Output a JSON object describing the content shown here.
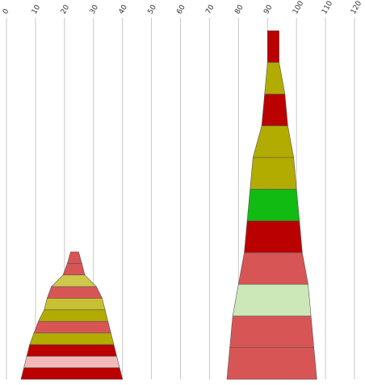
{
  "chart_data": {
    "type": "bar",
    "orientation": "vertical-stacked-funnel",
    "title": "",
    "xlabel": "",
    "ylabel": "",
    "xlim": [
      0,
      120
    ],
    "x_ticks": [
      "0",
      "10",
      "20",
      "30",
      "40",
      "50",
      "60",
      "70",
      "80",
      "90",
      "100",
      "110",
      "120"
    ],
    "grid": "vertical",
    "tick_label_rotation": -60,
    "stacks": [
      {
        "center": 25,
        "segments": [
          {
            "start": 5,
            "end": 40,
            "color": "#bb0000"
          },
          {
            "start": 6,
            "end": 39,
            "color": "#f4b8b8"
          },
          {
            "start": 7,
            "end": 38,
            "color": "#bb0000"
          },
          {
            "start": 8,
            "end": 37,
            "color": "#b3ac00"
          },
          {
            "start": 9.5,
            "end": 36,
            "color": "#d85555"
          },
          {
            "start": 11,
            "end": 35,
            "color": "#b3ac00"
          },
          {
            "start": 13,
            "end": 34,
            "color": "#c8c030"
          },
          {
            "start": 14,
            "end": 33,
            "color": "#d85555"
          },
          {
            "start": 15.5,
            "end": 31,
            "color": "#cec84a"
          },
          {
            "start": 19.5,
            "end": 27,
            "color": "#d85555"
          },
          {
            "start": 21,
            "end": 26,
            "color": "#d85555"
          }
        ]
      },
      {
        "center": 92,
        "segments": [
          {
            "start": 76,
            "end": 107,
            "color": "#d85555"
          },
          {
            "start": 77,
            "end": 106,
            "color": "#d85555"
          },
          {
            "start": 78,
            "end": 105,
            "color": "#cce8b8"
          },
          {
            "start": 80,
            "end": 104,
            "color": "#d85555"
          },
          {
            "start": 82,
            "end": 102,
            "color": "#bb0000"
          },
          {
            "start": 83,
            "end": 101,
            "color": "#11bb11"
          },
          {
            "start": 84,
            "end": 100,
            "color": "#b3ac00"
          },
          {
            "start": 85,
            "end": 99,
            "color": "#b3ac00"
          },
          {
            "start": 88,
            "end": 97,
            "color": "#bb0000"
          },
          {
            "start": 89,
            "end": 96,
            "color": "#b3ac00"
          },
          {
            "start": 90,
            "end": 94,
            "color": "#bb0000"
          }
        ]
      }
    ]
  }
}
